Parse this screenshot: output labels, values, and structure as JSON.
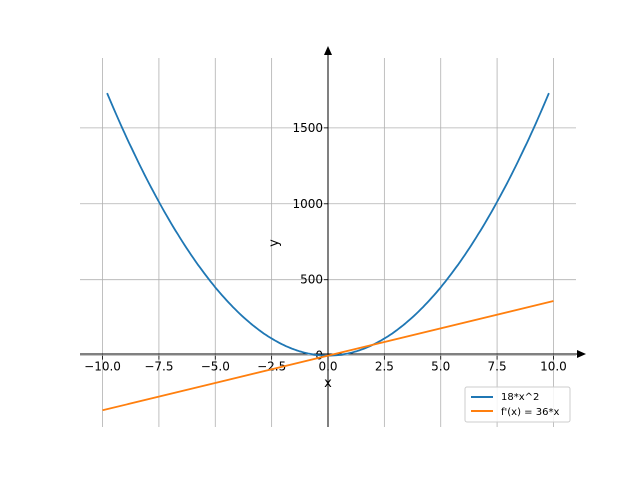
{
  "chart_data": {
    "type": "line",
    "xlabel": "x",
    "ylabel": "y",
    "xlim": [
      -11,
      11
    ],
    "ylim": [
      -470,
      1960
    ],
    "x_ticks": [
      -10.0,
      -7.5,
      -5.0,
      -2.5,
      0.0,
      2.5,
      5.0,
      7.5,
      10.0
    ],
    "x_tick_labels": [
      "−10.0",
      "−7.5",
      "−5.0",
      "−2.5",
      "0.0",
      "2.5",
      "5.0",
      "7.5",
      "10.0"
    ],
    "y_ticks": [
      0,
      500,
      1000,
      1500
    ],
    "y_tick_labels": [
      "0",
      "500",
      "1000",
      "1500"
    ],
    "grid": true,
    "legend_position": "lower-right",
    "series": [
      {
        "name": "18*x^2",
        "color": "#1f77b4",
        "x": [
          -9.8,
          -9,
          -8,
          -7,
          -6,
          -5,
          -4,
          -3,
          -2,
          -1,
          0,
          1,
          2,
          3,
          4,
          5,
          6,
          7,
          8,
          9,
          9.8
        ],
        "y": [
          1728.72,
          1458,
          1152,
          882,
          648,
          450,
          288,
          162,
          72,
          18,
          0,
          18,
          72,
          162,
          288,
          450,
          648,
          882,
          1152,
          1458,
          1728.72
        ]
      },
      {
        "name": "f'(x) = 36*x",
        "color": "#ff7f0e",
        "x": [
          -10,
          10
        ],
        "y": [
          -360,
          360
        ]
      }
    ]
  }
}
